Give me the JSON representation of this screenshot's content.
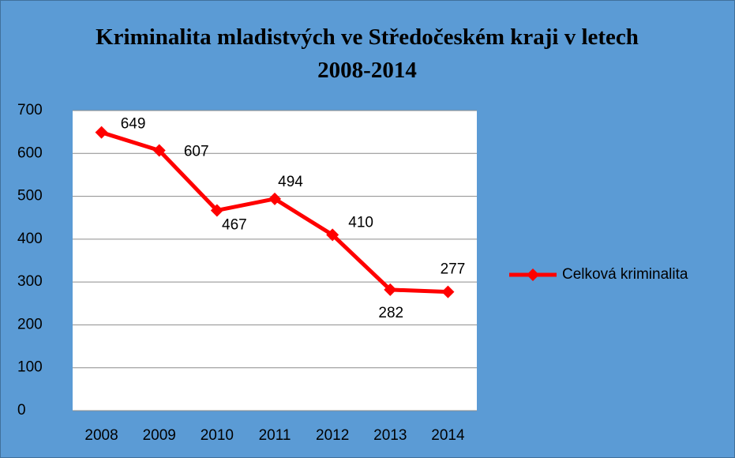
{
  "chart_data": {
    "type": "line",
    "title": "Kriminalita mladistvých ve Středočeském kraji v letech 2008-2014",
    "categories": [
      "2008",
      "2009",
      "2010",
      "2011",
      "2012",
      "2013",
      "2014"
    ],
    "series": [
      {
        "name": "Celková kriminalita",
        "color": "#ff0000",
        "values": [
          649,
          607,
          467,
          494,
          410,
          282,
          277
        ]
      }
    ],
    "ylim": [
      0,
      700
    ],
    "yticks": [
      0,
      100,
      200,
      300,
      400,
      500,
      600,
      700
    ],
    "grid": true,
    "legend": "right",
    "markers": true,
    "data_labels": true
  }
}
